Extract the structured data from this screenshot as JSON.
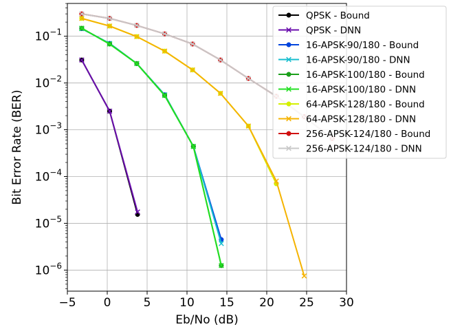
{
  "chart_data": {
    "type": "line",
    "xlabel": "Eb/No (dB)",
    "ylabel": "Bit Error Rate (BER)",
    "xlim": [
      -5,
      30
    ],
    "ylim_exp": [
      -6.45,
      -0.3
    ],
    "y_scale": "log",
    "grid": true,
    "legend_position": "top-right",
    "x_ticks": [
      -5,
      0,
      5,
      10,
      15,
      20,
      25,
      30
    ],
    "y_ticks": [
      {
        "base": "10",
        "exp": "-6",
        "value": 1e-06
      },
      {
        "base": "10",
        "exp": "-5",
        "value": 1e-05
      },
      {
        "base": "10",
        "exp": "-4",
        "value": 0.0001
      },
      {
        "base": "10",
        "exp": "-3",
        "value": 0.001
      },
      {
        "base": "10",
        "exp": "-2",
        "value": 0.01
      },
      {
        "base": "10",
        "exp": "-1",
        "value": 0.1
      }
    ],
    "series": [
      {
        "name": "QPSK - Bound",
        "color": "#000000",
        "marker": "circle",
        "x": [
          -3.2,
          0.3,
          3.8
        ],
        "y": [
          0.031,
          0.0025,
          1.55e-05
        ]
      },
      {
        "name": "QPSK - DNN",
        "color": "#6a0dad",
        "marker": "x",
        "x": [
          -3.2,
          0.3,
          3.8
        ],
        "y": [
          0.031,
          0.0025,
          1.75e-05
        ]
      },
      {
        "name": "16-APSK-90/180 - Bound",
        "color": "#0044dd",
        "marker": "circle",
        "x": [
          -3.2,
          0.3,
          3.7,
          7.2,
          10.8,
          14.3
        ],
        "y": [
          0.145,
          0.07,
          0.026,
          0.0056,
          0.00044,
          4.5e-06
        ]
      },
      {
        "name": "16-APSK-90/180 - DNN",
        "color": "#17becf",
        "marker": "x",
        "x": [
          -3.2,
          0.3,
          3.7,
          7.2,
          10.8,
          14.3
        ],
        "y": [
          0.145,
          0.07,
          0.026,
          0.0056,
          0.00044,
          3.7e-06
        ]
      },
      {
        "name": "16-APSK-100/180 - Bound",
        "color": "#1a9f1a",
        "marker": "circle",
        "x": [
          -3.2,
          0.3,
          3.7,
          7.2,
          10.8,
          14.3
        ],
        "y": [
          0.148,
          0.068,
          0.026,
          0.0054,
          0.00044,
          1.25e-06
        ]
      },
      {
        "name": "16-APSK-100/180 - DNN",
        "color": "#22e022",
        "marker": "x",
        "x": [
          -3.2,
          0.3,
          3.7,
          7.2,
          10.8,
          14.3
        ],
        "y": [
          0.148,
          0.068,
          0.026,
          0.0054,
          0.00044,
          1.25e-06
        ]
      },
      {
        "name": "64-APSK-128/180 - Bound",
        "color": "#d4f000",
        "marker": "circle",
        "x": [
          -3.2,
          0.3,
          3.7,
          7.2,
          10.7,
          14.2,
          17.7,
          21.2
        ],
        "y": [
          0.24,
          0.165,
          0.098,
          0.048,
          0.019,
          0.006,
          0.0012,
          7e-05
        ]
      },
      {
        "name": "64-APSK-128/180 - DNN",
        "color": "#f5b300",
        "marker": "x",
        "x": [
          -3.2,
          0.3,
          3.7,
          7.2,
          10.7,
          14.2,
          17.7,
          21.2,
          24.7
        ],
        "y": [
          0.24,
          0.165,
          0.098,
          0.048,
          0.019,
          0.006,
          0.0012,
          8e-05,
          7.5e-07
        ]
      },
      {
        "name": "256-APSK-124/180 - Bound",
        "color": "#d01010",
        "marker": "circle",
        "x": [
          -3.2,
          0.3,
          3.7,
          7.2,
          10.7,
          14.2,
          17.7,
          21.2,
          24.7,
          28.2
        ],
        "y": [
          0.3,
          0.24,
          0.17,
          0.112,
          0.068,
          0.031,
          0.0125,
          0.0052,
          0.0019,
          0.00065
        ]
      },
      {
        "name": "256-APSK-124/180 - DNN",
        "color": "#c8c8c8",
        "marker": "x",
        "x": [
          -3.2,
          0.3,
          3.7,
          7.2,
          10.7,
          14.2,
          17.7,
          21.2,
          24.7,
          28.2
        ],
        "y": [
          0.3,
          0.24,
          0.17,
          0.112,
          0.068,
          0.031,
          0.0125,
          0.0052,
          0.0019,
          0.00065
        ]
      }
    ]
  }
}
